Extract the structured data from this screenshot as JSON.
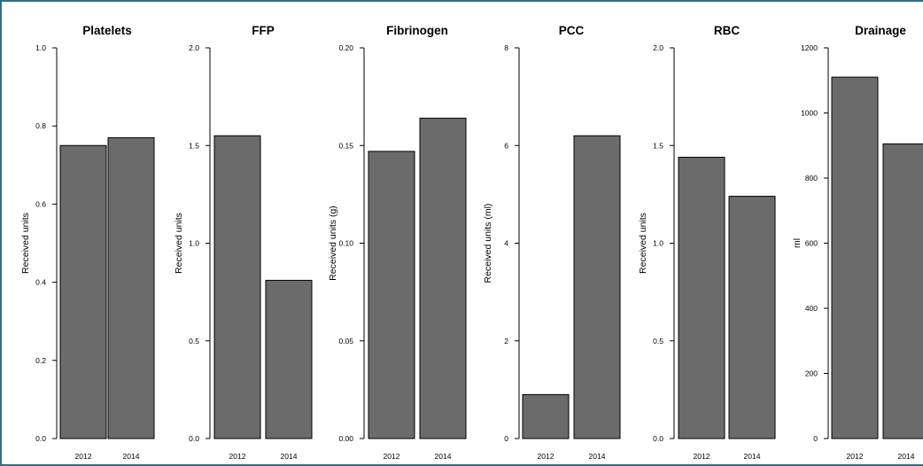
{
  "chart_data": [
    {
      "type": "bar",
      "title": "Platelets",
      "ylabel": "Received units",
      "categories": [
        "2012",
        "2014"
      ],
      "values": [
        0.75,
        0.77
      ],
      "ylim": [
        0,
        1.0
      ],
      "yticks": [
        "0.0",
        "0.2",
        "0.4",
        "0.6",
        "0.8",
        "1.0"
      ],
      "bar_color": "#6b6b6b"
    },
    {
      "type": "bar",
      "title": "FFP",
      "ylabel": "Received units",
      "categories": [
        "2012",
        "2014"
      ],
      "values": [
        1.55,
        0.81
      ],
      "ylim": [
        0,
        2.0
      ],
      "yticks": [
        "0.0",
        "0.5",
        "1.0",
        "1.5",
        "2.0"
      ],
      "bar_color": "#6b6b6b"
    },
    {
      "type": "bar",
      "title": "Fibrinogen",
      "ylabel": "Received units (g)",
      "categories": [
        "2012",
        "2014"
      ],
      "values": [
        0.147,
        0.164
      ],
      "ylim": [
        0,
        0.2
      ],
      "yticks": [
        "0.00",
        "0.05",
        "0.10",
        "0.15",
        "0.20"
      ],
      "bar_color": "#6b6b6b"
    },
    {
      "type": "bar",
      "title": "PCC",
      "ylabel": "Received units (ml)",
      "categories": [
        "2012",
        "2014"
      ],
      "values": [
        0.9,
        6.2
      ],
      "ylim": [
        0,
        8
      ],
      "yticks": [
        "0",
        "2",
        "4",
        "6",
        "8"
      ],
      "bar_color": "#6b6b6b"
    },
    {
      "type": "bar",
      "title": "RBC",
      "ylabel": "Received units",
      "categories": [
        "2012",
        "2014"
      ],
      "values": [
        1.44,
        1.24
      ],
      "ylim": [
        0,
        2.0
      ],
      "yticks": [
        "0.0",
        "0.5",
        "1.0",
        "1.5",
        "2.0"
      ],
      "bar_color": "#6b6b6b"
    },
    {
      "type": "bar",
      "title": "Drainage",
      "ylabel": "ml",
      "categories": [
        "2012",
        "2014"
      ],
      "values": [
        1110,
        905
      ],
      "ylim": [
        0,
        1200
      ],
      "yticks": [
        "0",
        "200",
        "400",
        "600",
        "800",
        "1000",
        "1200"
      ],
      "bar_color": "#6b6b6b"
    }
  ]
}
